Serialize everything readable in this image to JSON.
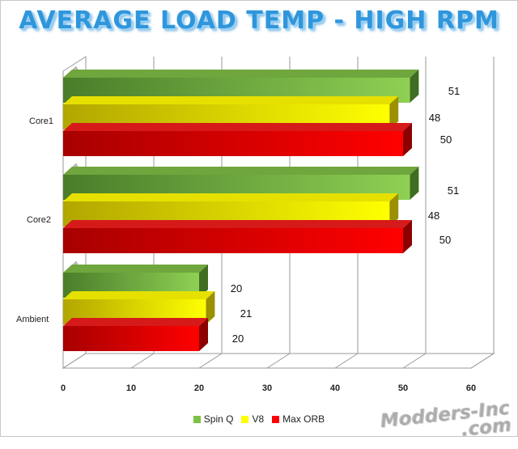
{
  "chart_data": {
    "type": "bar",
    "orientation": "horizontal",
    "three_d": true,
    "title": "AVERAGE LOAD TEMP - HIGH RPM",
    "categories": [
      "Core1",
      "Core2",
      "Ambient"
    ],
    "series": [
      {
        "name": "Spin Q",
        "values": [
          51,
          51,
          20
        ],
        "color": "#7cc242"
      },
      {
        "name": "V8",
        "values": [
          48,
          48,
          21
        ],
        "color": "#ffff00"
      },
      {
        "name": "Max ORB",
        "values": [
          50,
          50,
          20
        ],
        "color": "#ff0000"
      }
    ],
    "xlim": [
      0,
      60
    ],
    "xticks": [
      0,
      10,
      20,
      30,
      40,
      50,
      60
    ],
    "grid": true,
    "legend": "bottom"
  },
  "watermark": {
    "line1": "Modders-Inc",
    "line2": ".com"
  }
}
